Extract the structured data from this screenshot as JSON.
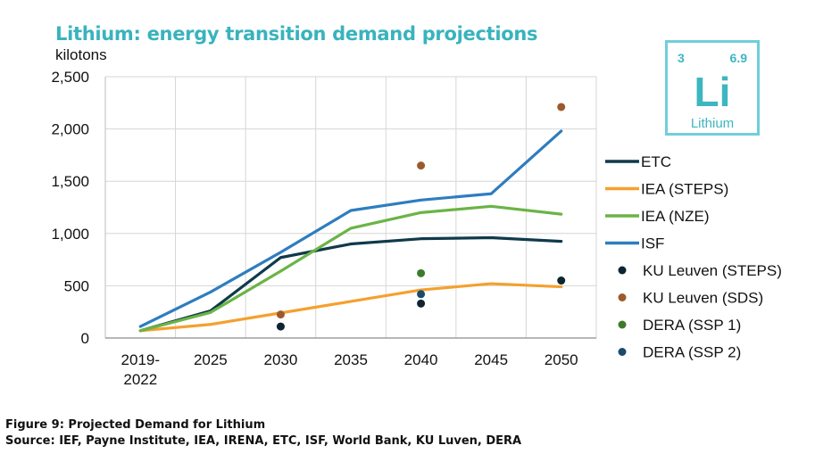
{
  "header": {
    "title": "Lithium: energy transition demand projections",
    "unit": "kilotons"
  },
  "element_tile": {
    "atomic_number": "3",
    "atomic_mass": "6.9",
    "symbol": "Li",
    "name": "Lithium",
    "color": "#3db6c1"
  },
  "chart_data": {
    "type": "line",
    "categories": [
      "2019-2022",
      "2025",
      "2030",
      "2035",
      "2040",
      "2045",
      "2050"
    ],
    "category_label_lines": [
      [
        "2019-",
        "2022"
      ],
      [
        "2025"
      ],
      [
        "2030"
      ],
      [
        "2035"
      ],
      [
        "2040"
      ],
      [
        "2045"
      ],
      [
        "2050"
      ]
    ],
    "ylim": [
      0,
      2500
    ],
    "yticks": [
      0,
      500,
      1000,
      1500,
      2000,
      2500
    ],
    "ytick_labels": [
      "0",
      "500",
      "1,000",
      "1,500",
      "2,000",
      "2,500"
    ],
    "grid": true,
    "legend_position": "right",
    "series": [
      {
        "name": "ETC",
        "kind": "line",
        "color": "#0f3a4a",
        "values": [
          70,
          260,
          770,
          900,
          950,
          960,
          925
        ]
      },
      {
        "name": "IEA (STEPS)",
        "kind": "line",
        "color": "#f5a02e",
        "values": [
          70,
          130,
          240,
          350,
          460,
          520,
          490
        ]
      },
      {
        "name": "IEA (NZE)",
        "kind": "line",
        "color": "#6ab446",
        "values": [
          70,
          245,
          640,
          1050,
          1200,
          1260,
          1185
        ]
      },
      {
        "name": "ISF",
        "kind": "line",
        "color": "#2e7dbf",
        "values": [
          110,
          440,
          820,
          1220,
          1320,
          1380,
          1980
        ]
      },
      {
        "name": "KU Leuven (STEPS)",
        "kind": "scatter",
        "color": "#0c2530",
        "points": [
          {
            "x": "2030",
            "y": 110
          },
          {
            "x": "2040",
            "y": 330
          },
          {
            "x": "2050",
            "y": 550
          }
        ]
      },
      {
        "name": "KU Leuven (SDS)",
        "kind": "scatter",
        "color": "#9c5a2c",
        "points": [
          {
            "x": "2030",
            "y": 225
          },
          {
            "x": "2040",
            "y": 1650
          },
          {
            "x": "2050",
            "y": 2210
          }
        ]
      },
      {
        "name": "DERA (SSP 1)",
        "kind": "scatter",
        "color": "#3f7a2b",
        "points": [
          {
            "x": "2040",
            "y": 620
          }
        ]
      },
      {
        "name": "DERA (SSP 2)",
        "kind": "scatter",
        "color": "#1b4b6b",
        "points": [
          {
            "x": "2040",
            "y": 420
          }
        ]
      }
    ]
  },
  "caption": {
    "figure": "Figure 9: Projected Demand for Lithium",
    "source": "Source: IEF, Payne Institute, IEA, IRENA, ETC, ISF, World Bank, KU Luven, DERA"
  }
}
